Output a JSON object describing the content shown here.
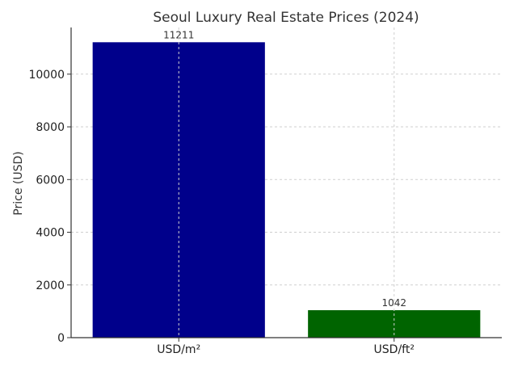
{
  "chart_data": {
    "type": "bar",
    "title": "Seoul Luxury Real Estate Prices (2024)",
    "xlabel": "",
    "ylabel": "Price (USD)",
    "categories": [
      "USD/m²",
      "USD/ft²"
    ],
    "values": [
      11211,
      1042
    ],
    "value_labels": [
      "11211",
      "1042"
    ],
    "colors": [
      "#00008b",
      "#006400"
    ],
    "ylim": [
      0,
      11772
    ],
    "yticks": [
      0,
      2000,
      4000,
      6000,
      8000,
      10000
    ],
    "ytick_labels": [
      "0",
      "2000",
      "4000",
      "6000",
      "8000",
      "10000"
    ],
    "grid": true
  }
}
